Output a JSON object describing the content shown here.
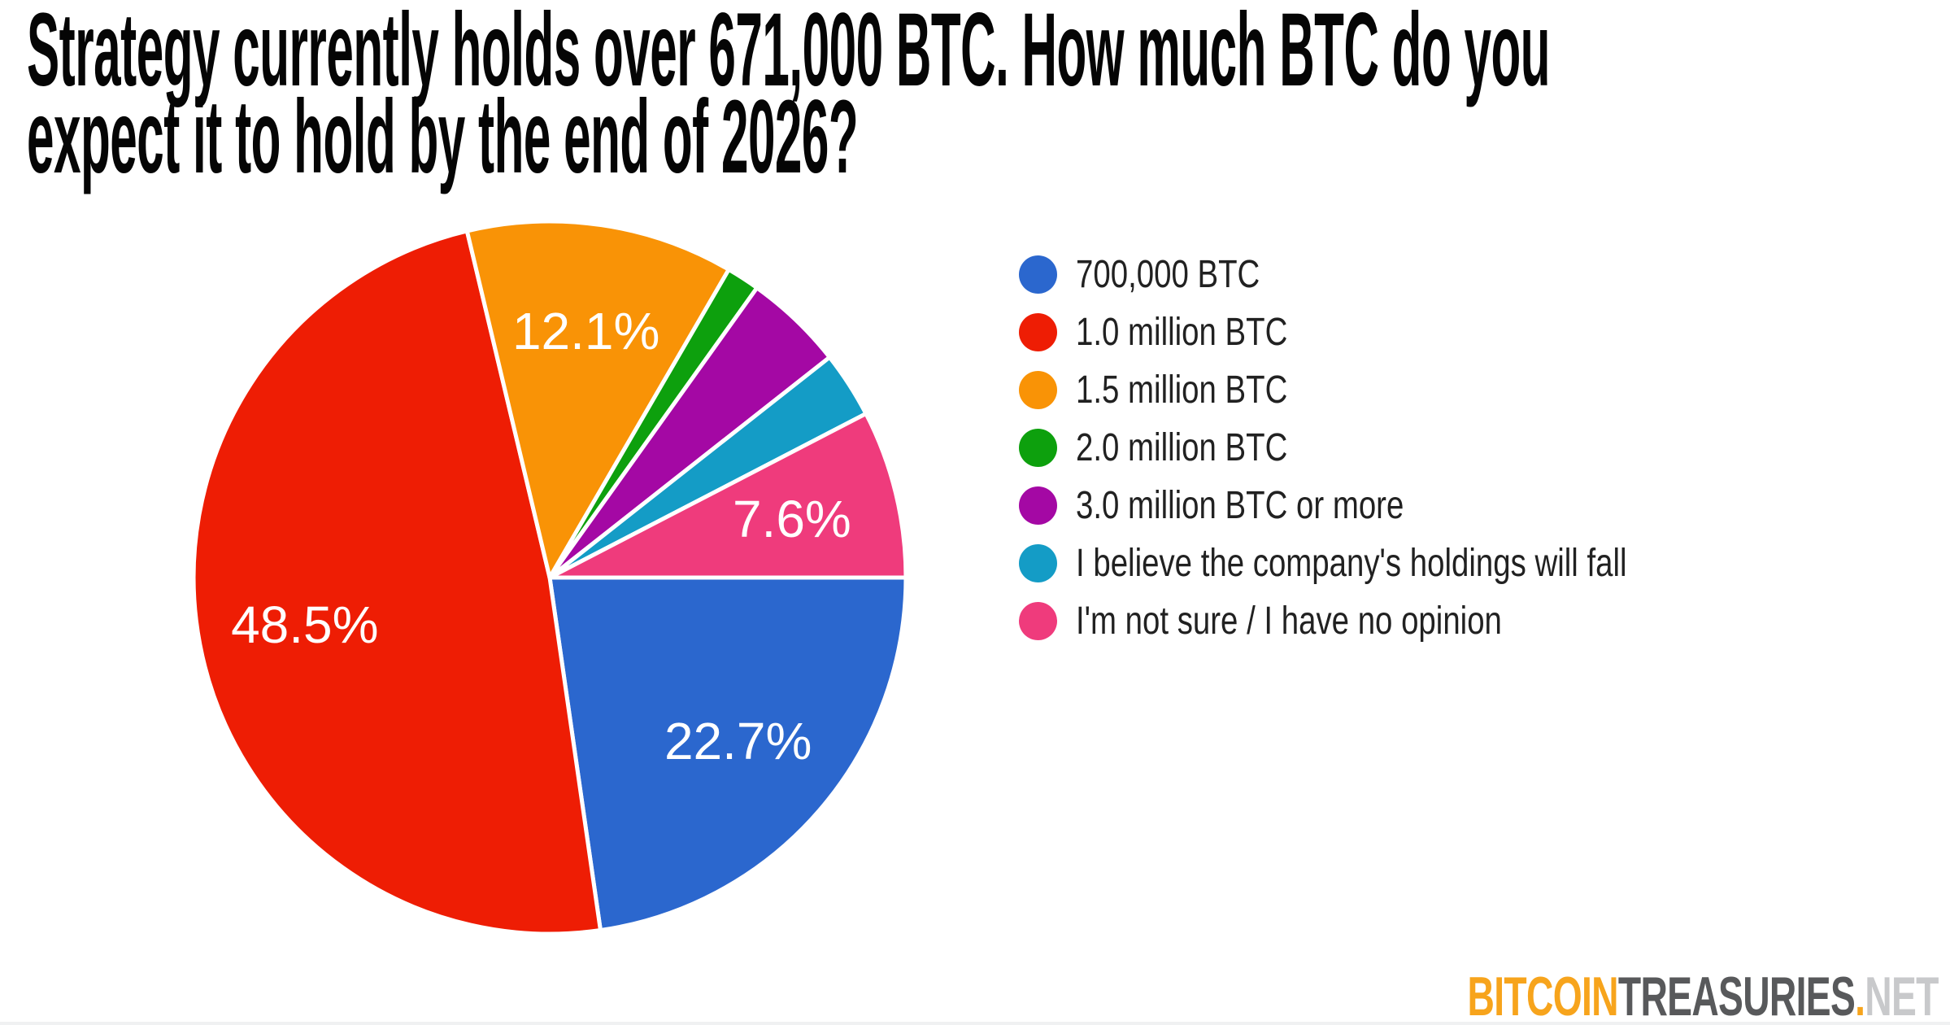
{
  "title": {
    "lines": [
      "Strategy currently holds over 671,000 BTC. How much BTC do you",
      "expect it to hold by the end of 2026?"
    ]
  },
  "chart_data": {
    "type": "pie",
    "title": "Strategy currently holds over 671,000 BTC. How much BTC do you expect it to hold by the end of 2026?",
    "legend_position": "right",
    "start_angle_deg_clockwise_from_east": 0,
    "label_text_color": "#ffffff",
    "slice_gap_color": "#ffffff",
    "slices": [
      {
        "label": "700,000 BTC",
        "value_pct": 22.7,
        "color": "#2B67CE",
        "data_label": "22.7%"
      },
      {
        "label": "1.0 million BTC",
        "value_pct": 48.5,
        "color": "#EE1D04",
        "data_label": "48.5%"
      },
      {
        "label": "1.5 million BTC",
        "value_pct": 12.1,
        "color": "#F99306",
        "data_label": "12.1%"
      },
      {
        "label": "2.0 million BTC",
        "value_pct": 1.5,
        "color": "#0DA00D",
        "data_label": ""
      },
      {
        "label": "3.0 million BTC or more",
        "value_pct": 4.5,
        "color": "#A408A4",
        "data_label": ""
      },
      {
        "label": "I believe the company's holdings will fall",
        "value_pct": 3.0,
        "color": "#149CC6",
        "data_label": ""
      },
      {
        "label": "I'm not sure / I have no opinion",
        "value_pct": 7.6,
        "color": "#EF3B7C",
        "data_label": "7.6%"
      }
    ]
  },
  "brand": {
    "parts": [
      {
        "text": "BITCOIN",
        "color": "#F7A41C"
      },
      {
        "text": "TREASURIES",
        "color": "#58595B"
      },
      {
        "text": ".",
        "color": "#F7A41C"
      },
      {
        "text": "NET",
        "color": "#C8C9CB"
      }
    ]
  }
}
